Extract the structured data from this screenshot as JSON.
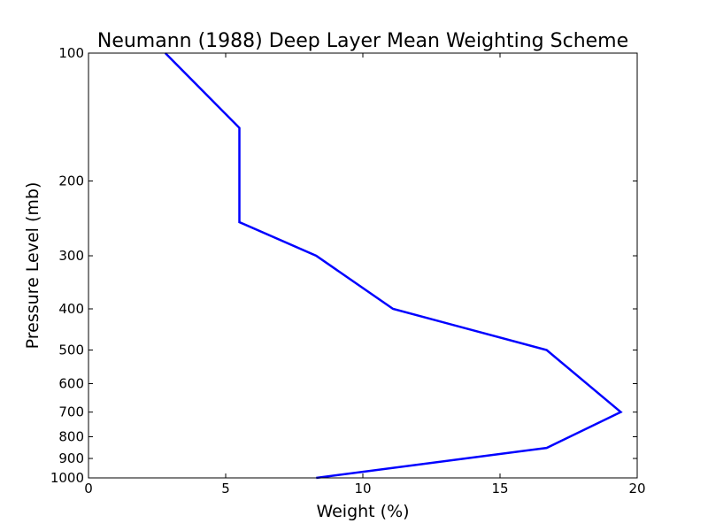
{
  "chart_data": {
    "type": "line",
    "title": "Neumann (1988) Deep Layer Mean Weighting Scheme",
    "xlabel": "Weight (%)",
    "ylabel": "Pressure Level (mb)",
    "xlim": [
      0,
      20
    ],
    "ylim": [
      1000,
      100
    ],
    "yscale": "log",
    "grid": false,
    "xticks": [
      0,
      5,
      10,
      15,
      20
    ],
    "xtick_labels": [
      "0",
      "5",
      "10",
      "15",
      "20"
    ],
    "yticks": [
      100,
      200,
      300,
      400,
      500,
      600,
      700,
      800,
      900,
      1000
    ],
    "ytick_labels": [
      "100",
      "200",
      "300",
      "400",
      "500",
      "600",
      "700",
      "800",
      "900",
      "1000"
    ],
    "series": [
      {
        "color": "#0000ff",
        "points": [
          {
            "x": 8.3,
            "y": 1000
          },
          {
            "x": 16.7,
            "y": 850
          },
          {
            "x": 19.4,
            "y": 700
          },
          {
            "x": 16.7,
            "y": 500
          },
          {
            "x": 11.1,
            "y": 400
          },
          {
            "x": 8.3,
            "y": 300
          },
          {
            "x": 5.5,
            "y": 250
          },
          {
            "x": 5.5,
            "y": 150
          },
          {
            "x": 2.8,
            "y": 100
          }
        ]
      }
    ]
  }
}
